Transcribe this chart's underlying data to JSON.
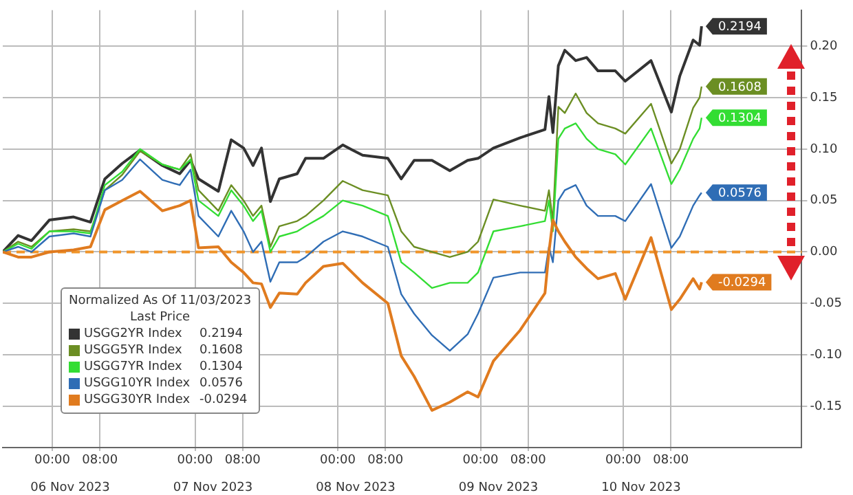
{
  "chart_data": {
    "type": "line",
    "legend_title": "Normalized As Of 11/03/2023\nLast Price",
    "x": [
      "2023-11-05T15:40",
      "2023-11-05T18:15",
      "2023-11-05T20:30",
      "2023-11-05T23:30",
      "2023-11-06T03:35",
      "2023-11-06T06:25",
      "2023-11-06T08:50",
      "2023-11-06T11:45",
      "2023-11-06T14:45",
      "2023-11-06T18:30",
      "2023-11-06T21:25",
      "2023-11-06T23:15",
      "2023-11-07T00:35",
      "2023-11-07T03:55",
      "2023-11-07T06:05",
      "2023-11-07T08:10",
      "2023-11-07T09:45",
      "2023-11-07T11:10",
      "2023-11-07T12:40",
      "2023-11-07T14:10",
      "2023-11-07T17:10",
      "2023-11-07T18:35",
      "2023-11-07T21:35",
      "2023-11-08T00:50",
      "2023-11-08T04:10",
      "2023-11-08T08:25",
      "2023-11-08T10:40",
      "2023-11-08T12:50",
      "2023-11-08T15:50",
      "2023-11-08T18:50",
      "2023-11-08T21:50",
      "2023-11-08T23:35",
      "2023-11-09T02:10",
      "2023-11-09T06:40",
      "2023-11-09T10:50",
      "2023-11-09T11:30",
      "2023-11-09T12:10",
      "2023-11-09T13:05",
      "2023-11-09T14:10",
      "2023-11-09T16:00",
      "2023-11-09T17:50",
      "2023-11-09T19:45",
      "2023-11-09T22:40",
      "2023-11-10T00:20",
      "2023-11-10T04:40",
      "2023-11-10T08:05",
      "2023-11-10T09:30",
      "2023-11-10T11:45",
      "2023-11-10T12:50",
      "2023-11-10T13:10"
    ],
    "series": [
      {
        "name": "USGG2YR Index",
        "color": "#333333",
        "values": [
          0,
          0.016,
          0.011,
          0.031,
          0.034,
          0.029,
          0.071,
          0.086,
          0.099,
          0.084,
          0.076,
          0.089,
          0.071,
          0.059,
          0.109,
          0.101,
          0.084,
          0.101,
          0.049,
          0.071,
          0.076,
          0.091,
          0.091,
          0.104,
          0.094,
          0.091,
          0.071,
          0.089,
          0.089,
          0.079,
          0.089,
          0.091,
          0.101,
          0.111,
          0.119,
          0.151,
          0.116,
          0.181,
          0.196,
          0.186,
          0.189,
          0.176,
          0.176,
          0.166,
          0.186,
          0.136,
          0.171,
          0.206,
          0.201,
          0.2194
        ],
        "value_labels": [
          null,
          null,
          null,
          null,
          null,
          null,
          null,
          null,
          null,
          null,
          null,
          null,
          null,
          null,
          null,
          null,
          null,
          null,
          null,
          null,
          null,
          null,
          null,
          null,
          null,
          null,
          null,
          null,
          null,
          null,
          null,
          null,
          null,
          null,
          null,
          null,
          null,
          null,
          null,
          null,
          null,
          null,
          null,
          null,
          null,
          null,
          null,
          null,
          null,
          "0.2194"
        ]
      },
      {
        "name": "USGG5YR Index",
        "color": "#6b8e23",
        "values": [
          0,
          0.01,
          0.005,
          0.02,
          0.022,
          0.02,
          0.06,
          0.075,
          0.098,
          0.085,
          0.08,
          0.095,
          0.06,
          0.04,
          0.065,
          0.05,
          0.035,
          0.045,
          0.005,
          0.025,
          0.03,
          0.035,
          0.05,
          0.069,
          0.06,
          0.055,
          0.02,
          0.005,
          0,
          -0.005,
          0,
          0.01,
          0.051,
          0.045,
          0.04,
          0.06,
          0.03,
          0.141,
          0.135,
          0.154,
          0.135,
          0.125,
          0.12,
          0.115,
          0.144,
          0.086,
          0.1,
          0.14,
          0.15,
          0.1608
        ],
        "value_labels": [
          null,
          null,
          null,
          null,
          null,
          null,
          null,
          null,
          null,
          null,
          null,
          null,
          null,
          null,
          null,
          null,
          null,
          null,
          null,
          null,
          null,
          null,
          null,
          null,
          null,
          null,
          null,
          null,
          null,
          null,
          null,
          null,
          null,
          null,
          null,
          null,
          null,
          null,
          null,
          null,
          null,
          null,
          null,
          null,
          null,
          null,
          null,
          null,
          null,
          "0.1608"
        ]
      },
      {
        "name": "USGG7YR Index",
        "color": "#33dd33",
        "values": [
          0,
          0.008,
          0.003,
          0.02,
          0.02,
          0.018,
          0.065,
          0.078,
          0.1,
          0.085,
          0.08,
          0.09,
          0.05,
          0.035,
          0.06,
          0.045,
          0.03,
          0.04,
          0,
          0.015,
          0.02,
          0.025,
          0.035,
          0.05,
          0.045,
          0.035,
          -0.01,
          -0.02,
          -0.035,
          -0.03,
          -0.03,
          -0.02,
          0.02,
          0.025,
          0.03,
          0.05,
          0.02,
          0.11,
          0.12,
          0.125,
          0.11,
          0.1,
          0.095,
          0.085,
          0.12,
          0.066,
          0.08,
          0.11,
          0.12,
          0.1304
        ],
        "value_labels": [
          null,
          null,
          null,
          null,
          null,
          null,
          null,
          null,
          null,
          null,
          null,
          null,
          null,
          null,
          null,
          null,
          null,
          null,
          null,
          null,
          null,
          null,
          null,
          null,
          null,
          null,
          null,
          null,
          null,
          null,
          null,
          null,
          null,
          null,
          null,
          null,
          null,
          null,
          null,
          null,
          null,
          null,
          null,
          null,
          null,
          null,
          null,
          null,
          null,
          "0.1304"
        ]
      },
      {
        "name": "USGG10YR Index",
        "color": "#2f6db5",
        "values": [
          0,
          0.005,
          0,
          0.015,
          0.018,
          0.015,
          0.06,
          0.07,
          0.09,
          0.07,
          0.065,
          0.08,
          0.035,
          0.015,
          0.04,
          0.02,
          0,
          0.01,
          -0.029,
          -0.01,
          -0.01,
          -0.005,
          0.01,
          0.02,
          0.015,
          0.005,
          -0.041,
          -0.06,
          -0.081,
          -0.096,
          -0.08,
          -0.06,
          -0.025,
          -0.02,
          -0.02,
          0.005,
          -0.01,
          0.05,
          0.06,
          0.065,
          0.045,
          0.035,
          0.035,
          0.03,
          0.066,
          0.004,
          0.015,
          0.045,
          0.055,
          0.0576
        ],
        "value_labels": [
          null,
          null,
          null,
          null,
          null,
          null,
          null,
          null,
          null,
          null,
          null,
          null,
          null,
          null,
          null,
          null,
          null,
          null,
          null,
          null,
          null,
          null,
          null,
          null,
          null,
          null,
          null,
          null,
          null,
          null,
          null,
          null,
          null,
          null,
          null,
          null,
          null,
          null,
          null,
          null,
          null,
          null,
          null,
          null,
          null,
          null,
          null,
          null,
          null,
          "0.0576"
        ]
      },
      {
        "name": "USGG30YR Index",
        "color": "#e07b1f",
        "values": [
          0,
          -0.005,
          -0.005,
          0,
          0.002,
          0.005,
          0.041,
          0.05,
          0.059,
          0.04,
          0.045,
          0.05,
          0.004,
          0.005,
          -0.01,
          -0.02,
          -0.03,
          -0.031,
          -0.054,
          -0.04,
          -0.041,
          -0.03,
          -0.014,
          -0.011,
          -0.03,
          -0.05,
          -0.101,
          -0.121,
          -0.154,
          -0.146,
          -0.136,
          -0.141,
          -0.106,
          -0.076,
          -0.04,
          0,
          0.031,
          0.02,
          0.01,
          -0.005,
          -0.016,
          -0.026,
          -0.021,
          -0.046,
          0.014,
          -0.056,
          -0.046,
          -0.026,
          -0.036,
          -0.0294
        ],
        "value_labels": [
          null,
          null,
          null,
          null,
          null,
          null,
          null,
          null,
          null,
          null,
          null,
          null,
          null,
          null,
          null,
          null,
          null,
          null,
          null,
          null,
          null,
          null,
          null,
          null,
          null,
          null,
          null,
          null,
          null,
          null,
          null,
          null,
          null,
          null,
          null,
          null,
          null,
          null,
          null,
          null,
          null,
          null,
          null,
          null,
          null,
          null,
          null,
          null,
          null,
          "-0.0294"
        ]
      }
    ],
    "xlim": [
      "2023-11-05T15:40",
      "2023-11-11T06:00"
    ],
    "xticks": [
      {
        "value": "2023-11-06T00:00",
        "label": "00:00"
      },
      {
        "value": "2023-11-06T08:00",
        "label": "08:00"
      },
      {
        "value": "2023-11-07T00:00",
        "label": "00:00"
      },
      {
        "value": "2023-11-07T08:00",
        "label": "08:00"
      },
      {
        "value": "2023-11-08T00:00",
        "label": "00:00"
      },
      {
        "value": "2023-11-08T08:00",
        "label": "08:00"
      },
      {
        "value": "2023-11-09T00:00",
        "label": "00:00"
      },
      {
        "value": "2023-11-09T08:00",
        "label": "08:00"
      },
      {
        "value": "2023-11-10T00:00",
        "label": "00:00"
      },
      {
        "value": "2023-11-10T08:00",
        "label": "08:00"
      }
    ],
    "x2lim": [
      "2023-11-05T15:40",
      "2023-11-11T06:00"
    ],
    "x2ticks": [
      {
        "value": "2023-11-06T03:00",
        "label": "06 Nov 2023"
      },
      {
        "value": "2023-11-07T03:00",
        "label": "07 Nov 2023"
      },
      {
        "value": "2023-11-08T03:00",
        "label": "08 Nov 2023"
      },
      {
        "value": "2023-11-09T03:00",
        "label": "09 Nov 2023"
      },
      {
        "value": "2023-11-10T03:00",
        "label": "10 Nov 2023"
      }
    ],
    "ylim": [
      -0.19,
      0.235
    ],
    "yticks": [
      {
        "value": -0.15,
        "label": "-0.15"
      },
      {
        "value": -0.1,
        "label": "-0.10"
      },
      {
        "value": -0.05,
        "label": "-0.05"
      },
      {
        "value": 0,
        "label": "0.00"
      },
      {
        "value": 0.05,
        "label": "0.05"
      },
      {
        "value": 0.1,
        "label": "0.10"
      },
      {
        "value": 0.15,
        "label": "0.15"
      },
      {
        "value": 0.2,
        "label": "0.20"
      }
    ],
    "ref_lines": [
      {
        "axis": "y",
        "value": 0,
        "color": "#f0952a",
        "line_style": "dashed"
      }
    ],
    "grid": true,
    "legend": "bottom left",
    "marker": "none",
    "line_style": "solid"
  }
}
